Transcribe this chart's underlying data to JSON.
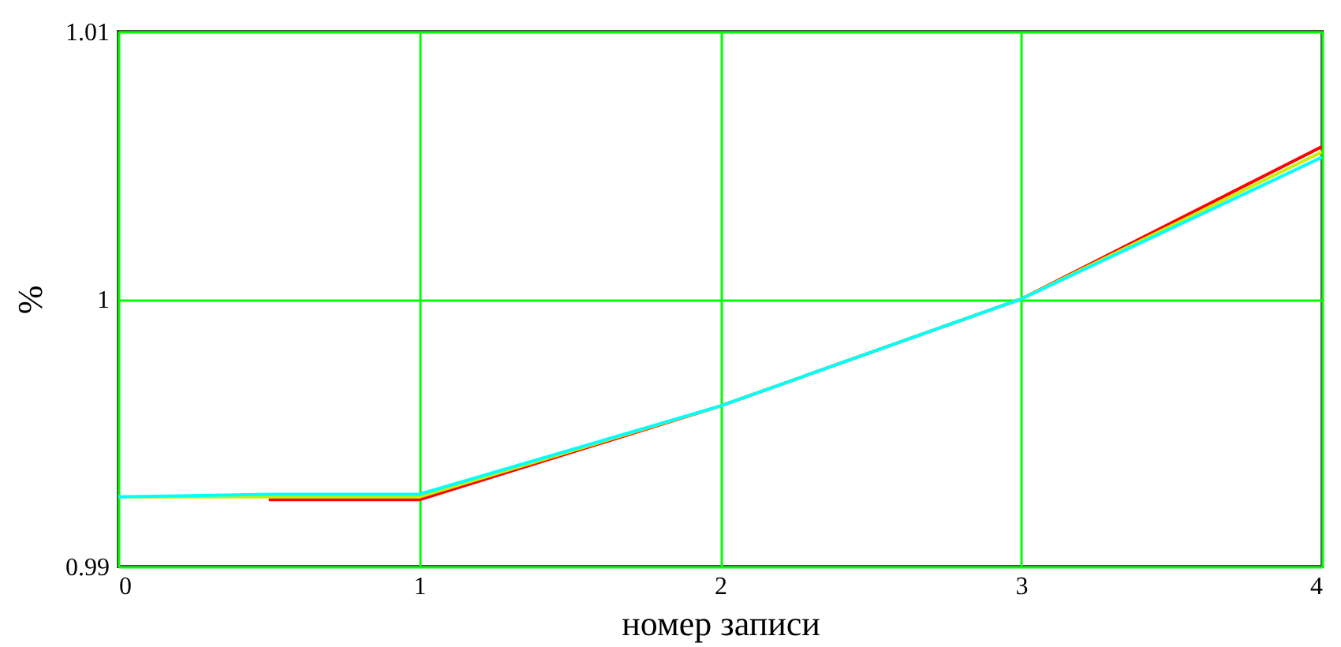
{
  "chart_data": {
    "type": "line",
    "xlabel": "номер записи",
    "ylabel": "%",
    "xlim": [
      0,
      4
    ],
    "ylim": [
      0.99,
      1.01
    ],
    "xticks": [
      0,
      1,
      2,
      3,
      4
    ],
    "yticks": [
      0.99,
      1,
      1.01
    ],
    "grid": true,
    "line_style": "solid",
    "x": [
      0,
      0.5,
      1,
      2,
      3,
      4
    ],
    "series": [
      {
        "color": "#ff0000",
        "values": [
          null,
          0.9925,
          0.9925,
          0.996,
          1.0,
          1.0057
        ]
      },
      {
        "color": "#c8f000",
        "values": [
          0.9926,
          0.9926,
          0.9926,
          0.996,
          1.0,
          1.0055
        ]
      },
      {
        "color": "#00ffff",
        "values": [
          0.9926,
          0.9927,
          0.9927,
          0.996,
          1.0,
          1.0053
        ]
      }
    ]
  }
}
